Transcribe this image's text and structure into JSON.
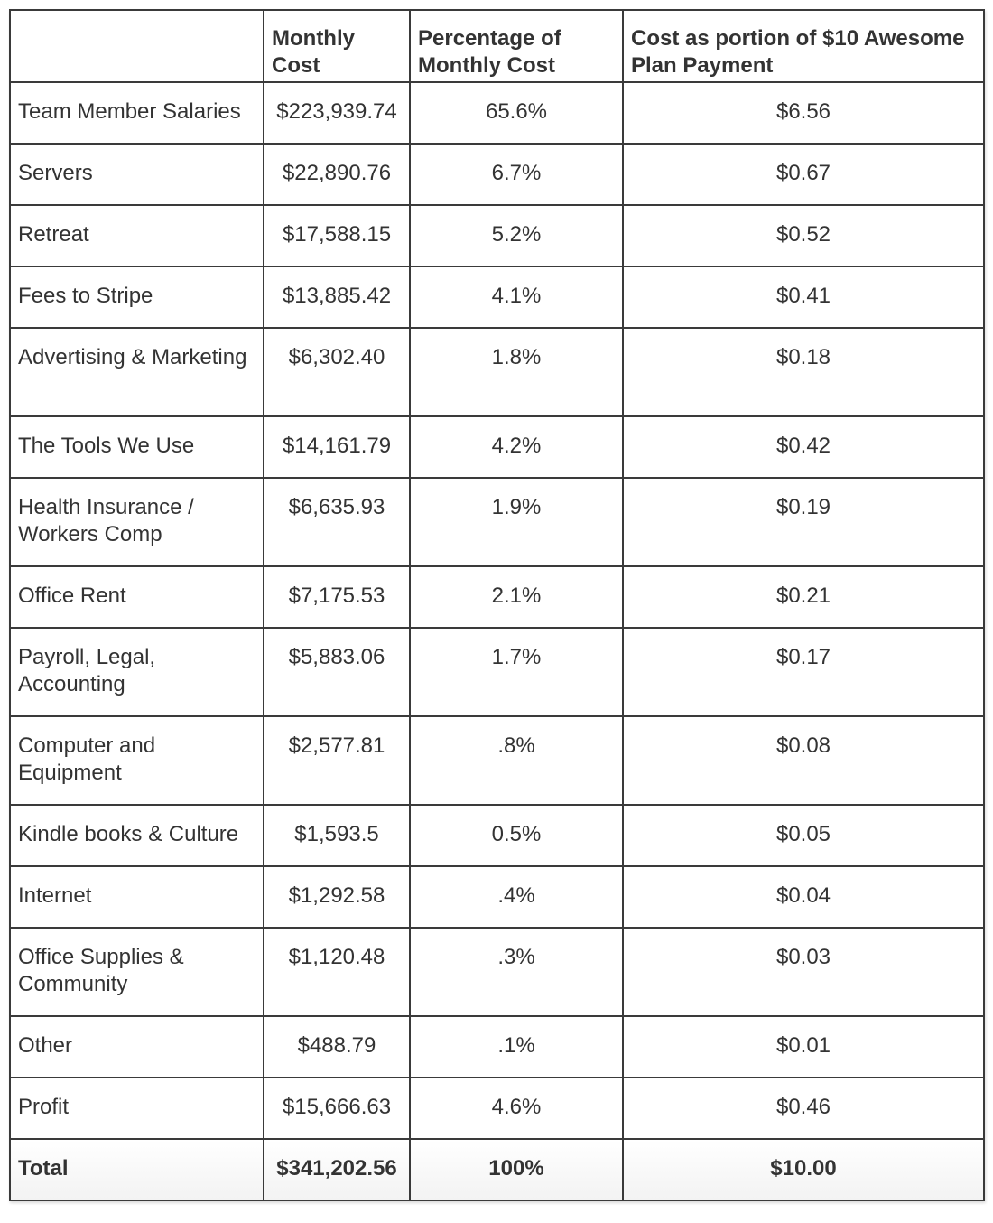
{
  "header": {
    "category": "",
    "monthly_cost": "Monthly Cost",
    "percentage": "Percentage of Monthly Cost",
    "portion": "Cost as portion of $10 Awesome Plan Payment"
  },
  "rows": [
    {
      "category": "Team Member Salaries",
      "cost": "$223,939.74",
      "percent": "65.6%",
      "portion": "$6.56"
    },
    {
      "category": "Servers",
      "cost": "$22,890.76",
      "percent": "6.7%",
      "portion": "$0.67"
    },
    {
      "category": "Retreat",
      "cost": "$17,588.15",
      "percent": "5.2%",
      "portion": "$0.52"
    },
    {
      "category": "Fees to Stripe",
      "cost": "$13,885.42",
      "percent": "4.1%",
      "portion": "$0.41"
    },
    {
      "category": "Advertising & Marketing",
      "cost": "$6,302.40",
      "percent": "1.8%",
      "portion": "$0.18"
    },
    {
      "category": "The Tools We Use",
      "cost": "$14,161.79",
      "percent": "4.2%",
      "portion": "$0.42"
    },
    {
      "category": "Health Insurance / Workers Comp",
      "cost": "$6,635.93",
      "percent": "1.9%",
      "portion": "$0.19"
    },
    {
      "category": "Office Rent",
      "cost": "$7,175.53",
      "percent": "2.1%",
      "portion": "$0.21"
    },
    {
      "category": "Payroll, Legal, Accounting",
      "cost": "$5,883.06",
      "percent": "1.7%",
      "portion": "$0.17"
    },
    {
      "category": "Computer and Equipment",
      "cost": "$2,577.81",
      "percent": ".8%",
      "portion": "$0.08"
    },
    {
      "category": "Kindle books & Culture",
      "cost": "$1,593.5",
      "percent": "0.5%",
      "portion": "$0.05"
    },
    {
      "category": "Internet",
      "cost": "$1,292.58",
      "percent": ".4%",
      "portion": "$0.04"
    },
    {
      "category": "Office Supplies & Community",
      "cost": "$1,120.48",
      "percent": ".3%",
      "portion": "$0.03"
    },
    {
      "category": "Other",
      "cost": "$488.79",
      "percent": ".1%",
      "portion": "$0.01"
    },
    {
      "category": "Profit",
      "cost": "$15,666.63",
      "percent": "4.6%",
      "portion": "$0.46"
    }
  ],
  "total": {
    "category": "Total",
    "cost": "$341,202.56",
    "percent": "100%",
    "portion": "$10.00"
  }
}
